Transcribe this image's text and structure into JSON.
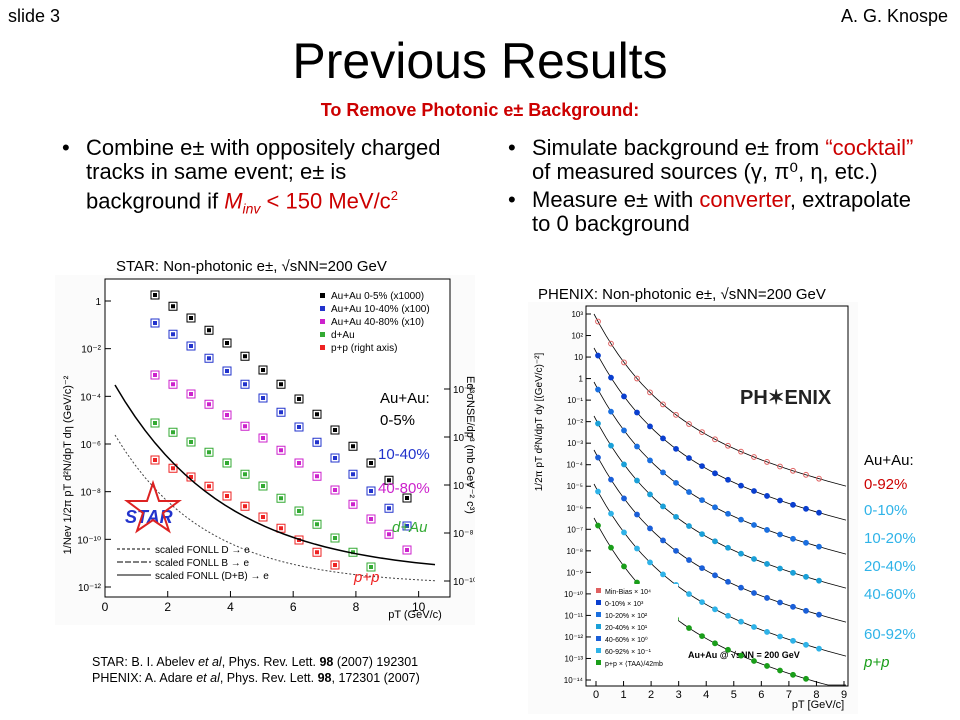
{
  "header": {
    "slide_label": "slide 3",
    "author": "A. G. Knospe"
  },
  "title": "Previous Results",
  "subtitle": "To Remove Photonic e± Background:",
  "left_bullet": {
    "t1": "Combine e± with oppositely charged tracks in same event; e± is background if ",
    "m": "M",
    "sub": "inv",
    "t2": " < 150 MeV/c",
    "sup": "2"
  },
  "right_bullets": {
    "b1_t1": "Simulate background e± from ",
    "b1_red": "“cocktail”",
    "b1_t2": " of measured sources (γ, π⁰, η, etc.)",
    "b2_t1": "Measure e± with ",
    "b2_red": "converter",
    "b2_t2": ", extrapolate to 0 background"
  },
  "star_plot": {
    "caption": "STAR: Non-photonic e±, √sNN=200 GeV",
    "legend": [
      "Au+Au 0-5% (x1000)",
      "Au+Au 10-40% (x100)",
      "Au+Au 40-80% (x10)",
      "d+Au",
      "p+p (right axis)"
    ],
    "curves": [
      "scaled FONLL D → e",
      "scaled FONLL B → e",
      "scaled FONLL (D+B) → e"
    ],
    "logo": "STAR",
    "x_ticks": [
      "0",
      "2",
      "4",
      "6",
      "8",
      "10"
    ],
    "y_ticks": [
      "1",
      "10⁻²",
      "10⁻⁴",
      "10⁻⁶",
      "10⁻⁸",
      "10⁻¹⁰",
      "10⁻¹²"
    ],
    "y2_ticks": [
      "10⁻²",
      "10⁻⁴",
      "10⁻⁶",
      "10⁻⁸",
      "10⁻¹⁰"
    ],
    "xlabel": "pT (GeV/c)",
    "ylabel": "1/Nev 1/2π pT d²N/dpT dη (GeV/c)⁻²",
    "y2label": "Ed³σNSE/dp³ (mb GeV⁻² c³)"
  },
  "star_labels": {
    "auau": "Au+Au:",
    "c1": "0-5%",
    "c2": "10-40%",
    "c3": "40-80%",
    "dau": "d+Au",
    "pp": "p+p"
  },
  "phenix_plot": {
    "caption": "PHENIX: Non-photonic e±, √sNN=200 GeV",
    "logo": "PH✶ENIX",
    "legend": [
      "Min-Bias × 10⁴",
      "0-10% × 10³",
      "10-20% × 10²",
      "20-40% × 10¹",
      "40-60% × 10⁰",
      "60-92% × 10⁻¹",
      "p+p × ⟨TAA⟩/42mb"
    ],
    "inset": "Au+Au @ √sNN = 200 GeV",
    "x_ticks": [
      "0",
      "1",
      "2",
      "3",
      "4",
      "5",
      "6",
      "7",
      "8",
      "9"
    ],
    "y_ticks": [
      "10³",
      "10²",
      "10",
      "1",
      "10⁻¹",
      "10⁻²",
      "10⁻³",
      "10⁻⁴",
      "10⁻⁵",
      "10⁻⁶",
      "10⁻⁷",
      "10⁻⁸",
      "10⁻⁹",
      "10⁻¹⁰",
      "10⁻¹¹",
      "10⁻¹²",
      "10⁻¹³",
      "10⁻¹⁴"
    ],
    "xlabel": "pT [GeV/c]",
    "ylabel": "1/2π pT d²N/dpT dy [(GeV/c)⁻²]"
  },
  "phenix_labels": {
    "auau": "Au+Au:",
    "c0": "0-92%",
    "c1": "0-10%",
    "c2": "10-20%",
    "c3": "20-40%",
    "c4": "40-60%",
    "c5": "60-92%",
    "pp": "p+p"
  },
  "references": {
    "star_a": "STAR: B. I. Abelev ",
    "star_etal": "et al",
    "star_b": ", Phys. Rev. Lett. ",
    "star_vol": "98",
    "star_c": " (2007) 192301",
    "phenix_a": "PHENIX: A. Adare ",
    "phenix_etal": "et al",
    "phenix_b": ", Phys. Rev. Lett. ",
    "phenix_vol": "98",
    "phenix_c": ", 172301 (2007)"
  },
  "colors": {
    "title_red": "#cc0000",
    "star_blue": "#2233cc",
    "star_magenta": "#cc22cc",
    "star_green": "#33aa33",
    "star_red": "#ee2222",
    "phenix_blue": "#0a3fcf",
    "phenix_cyan": "#2fb3e8",
    "phenix_green": "#1a9e1a"
  }
}
